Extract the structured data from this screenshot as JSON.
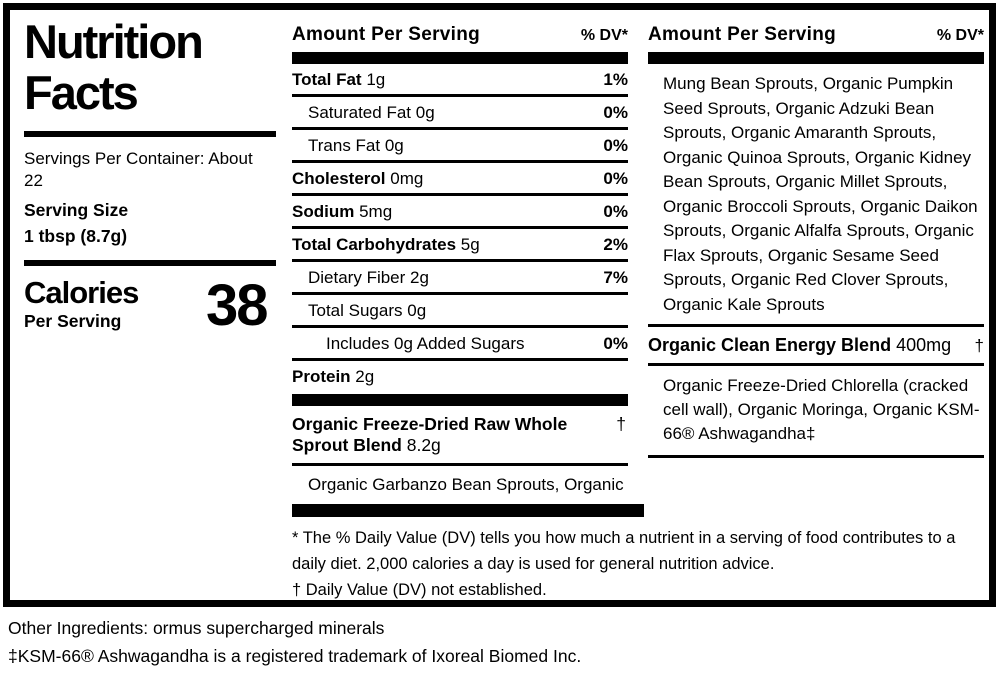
{
  "colors": {
    "text": "#000000",
    "background": "#ffffff"
  },
  "left": {
    "title_line1": "Nutrition",
    "title_line2": "Facts",
    "servings_per_container": "Servings Per Container: About 22",
    "serving_size_label": "Serving Size",
    "serving_size_value": "1 tbsp (8.7g)",
    "calories_label": "Calories",
    "calories_sublabel": "Per Serving",
    "calories_value": "38"
  },
  "mid": {
    "header": "Amount Per Serving",
    "dv_header": "% DV*",
    "rows": [
      {
        "name": "Total Fat",
        "amount": "1g",
        "dv": "1%",
        "bold": true,
        "indent": 0
      },
      {
        "name": "Saturated Fat",
        "amount": "0g",
        "dv": "0%",
        "bold": false,
        "indent": 1
      },
      {
        "name": "Trans Fat",
        "amount": "0g",
        "dv": "0%",
        "bold": false,
        "indent": 1
      },
      {
        "name": "Cholesterol",
        "amount": "0mg",
        "dv": "0%",
        "bold": true,
        "indent": 0
      },
      {
        "name": "Sodium",
        "amount": "5mg",
        "dv": "0%",
        "bold": true,
        "indent": 0
      },
      {
        "name": "Total Carbohydrates",
        "amount": "5g",
        "dv": "2%",
        "bold": true,
        "indent": 0
      },
      {
        "name": "Dietary Fiber",
        "amount": "2g",
        "dv": "7%",
        "bold": false,
        "indent": 1
      },
      {
        "name": "Total Sugars",
        "amount": "0g",
        "dv": "",
        "bold": false,
        "indent": 1
      },
      {
        "name": "Includes 0g Added Sugars",
        "amount": "",
        "dv": "0%",
        "bold": false,
        "indent": 2
      },
      {
        "name": "Protein",
        "amount": "2g",
        "dv": "",
        "bold": true,
        "indent": 0
      }
    ],
    "blend_name": "Organic Freeze-Dried Raw Whole Sprout Blend",
    "blend_amount": "8.2g",
    "blend_dv": "†",
    "blend_ingredients": "Organic Garbanzo Bean Sprouts, Organic",
    "footnote_dv": "* The % Daily Value (DV) tells you how much a nutrient in a serving of food contributes to a daily diet. 2,000 calories a day is used for general nutrition advice.",
    "footnote_dagger": "† Daily Value (DV) not established."
  },
  "right": {
    "header": "Amount Per Serving",
    "dv_header": "% DV*",
    "sprout_list": "Mung Bean Sprouts, Organic Pumpkin Seed Sprouts, Organic Adzuki Bean Sprouts, Organic Amaranth Sprouts, Organic Quinoa Sprouts, Organic Kidney Bean Sprouts, Organic Millet Sprouts, Organic Broccoli Sprouts, Organic Daikon Sprouts, Organic Alfalfa Sprouts, Organic Flax Sprouts, Organic Sesame Seed Sprouts, Organic Red Clover Sprouts, Organic Kale Sprouts",
    "energy_blend_name": "Organic Clean Energy Blend",
    "energy_blend_amount": "400mg",
    "energy_blend_dv": "†",
    "energy_blend_ingredients": "Organic Freeze-Dried Chlorella (cracked cell wall), Organic Moringa, Organic KSM-66® Ashwagandha‡"
  },
  "footer": {
    "other_ingredients": "Other Ingredients: ormus supercharged minerals",
    "trademark": "‡KSM-66® Ashwagandha is a registered trademark of Ixoreal Biomed Inc."
  }
}
